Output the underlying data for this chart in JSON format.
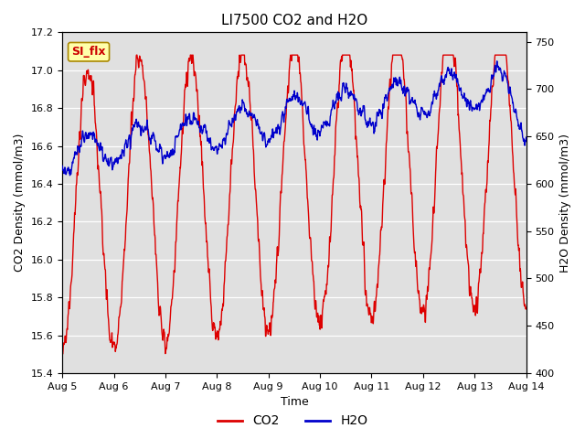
{
  "title": "LI7500 CO2 and H2O",
  "xlabel": "Time",
  "ylabel_left": "CO2 Density (mmol/m3)",
  "ylabel_right": "H2O Density (mmol/m3)",
  "co2_color": "#dd0000",
  "h2o_color": "#0000cc",
  "co2_label": "CO2",
  "h2o_label": "H2O",
  "ylim_left": [
    15.4,
    17.2
  ],
  "ylim_right": [
    400,
    760
  ],
  "yticks_left": [
    15.4,
    15.6,
    15.8,
    16.0,
    16.2,
    16.4,
    16.6,
    16.8,
    17.0,
    17.2
  ],
  "yticks_right": [
    400,
    450,
    500,
    550,
    600,
    650,
    700,
    750
  ],
  "xtick_labels": [
    "Aug 5",
    "Aug 6",
    "Aug 7",
    "Aug 8",
    "Aug 9",
    "Aug 10",
    "Aug 11",
    "Aug 12",
    "Aug 13",
    "Aug 14"
  ],
  "bg_color": "#e0e0e0",
  "annotation_text": "SI_flx",
  "annotation_bg": "#ffffaa",
  "annotation_border": "#aa8800",
  "annotation_text_color": "#cc0000",
  "grid_color": "#ffffff",
  "linewidth": 1.0,
  "title_fontsize": 11,
  "axis_fontsize": 9,
  "tick_fontsize": 8,
  "legend_fontsize": 10
}
